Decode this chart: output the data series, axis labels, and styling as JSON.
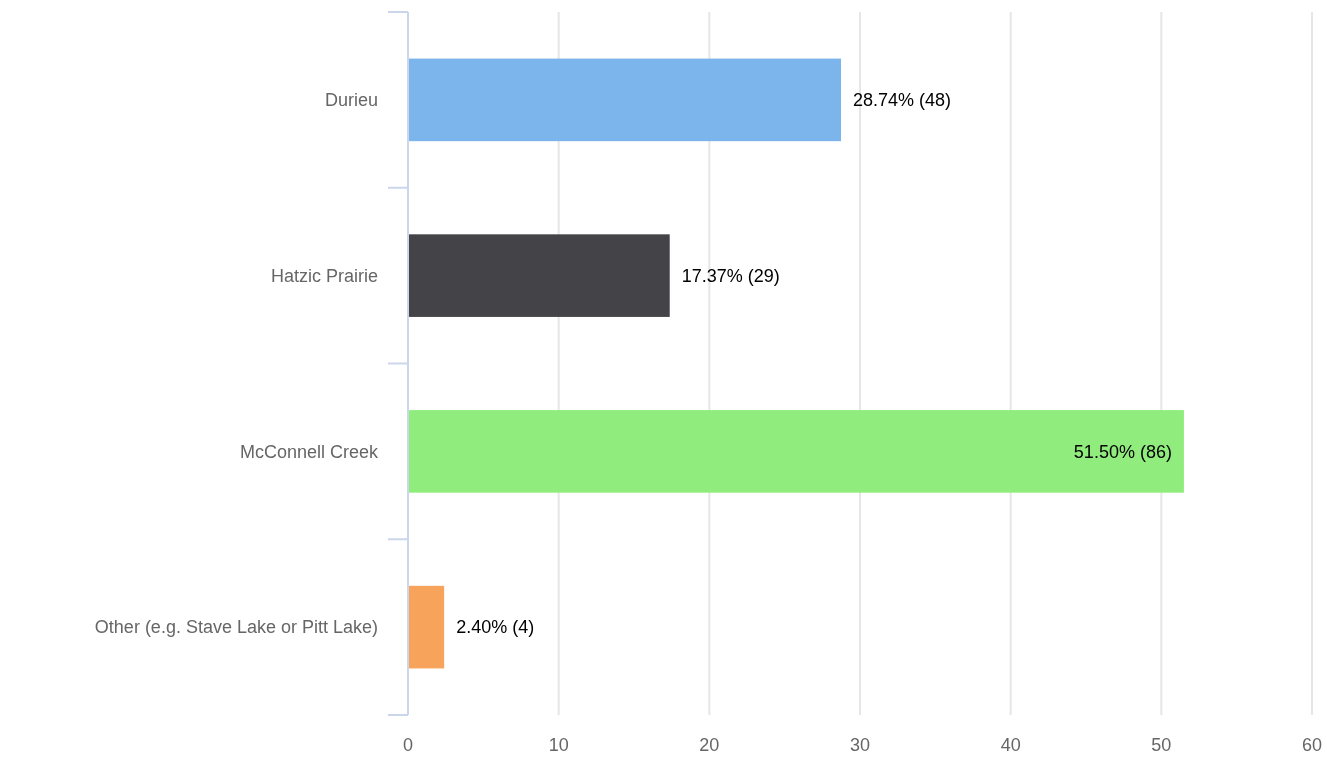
{
  "chart_data": {
    "type": "bar",
    "orientation": "horizontal",
    "categories": [
      "Durieu",
      "Hatzic Prairie",
      "McConnell Creek",
      "Other (e.g. Stave Lake or Pitt Lake)"
    ],
    "values": [
      28.74,
      17.37,
      51.5,
      2.4
    ],
    "colors": [
      "#7cb5ec",
      "#434348",
      "#90ed7d",
      "#f7a35c"
    ],
    "value_labels": [
      "28.74% (48)",
      "17.37% (29)",
      "51.50% (86)",
      "2.40% (4)"
    ],
    "xlim": [
      0,
      60
    ],
    "xticks": [
      0,
      10,
      20,
      30,
      40,
      50,
      60
    ],
    "grid": "x"
  }
}
